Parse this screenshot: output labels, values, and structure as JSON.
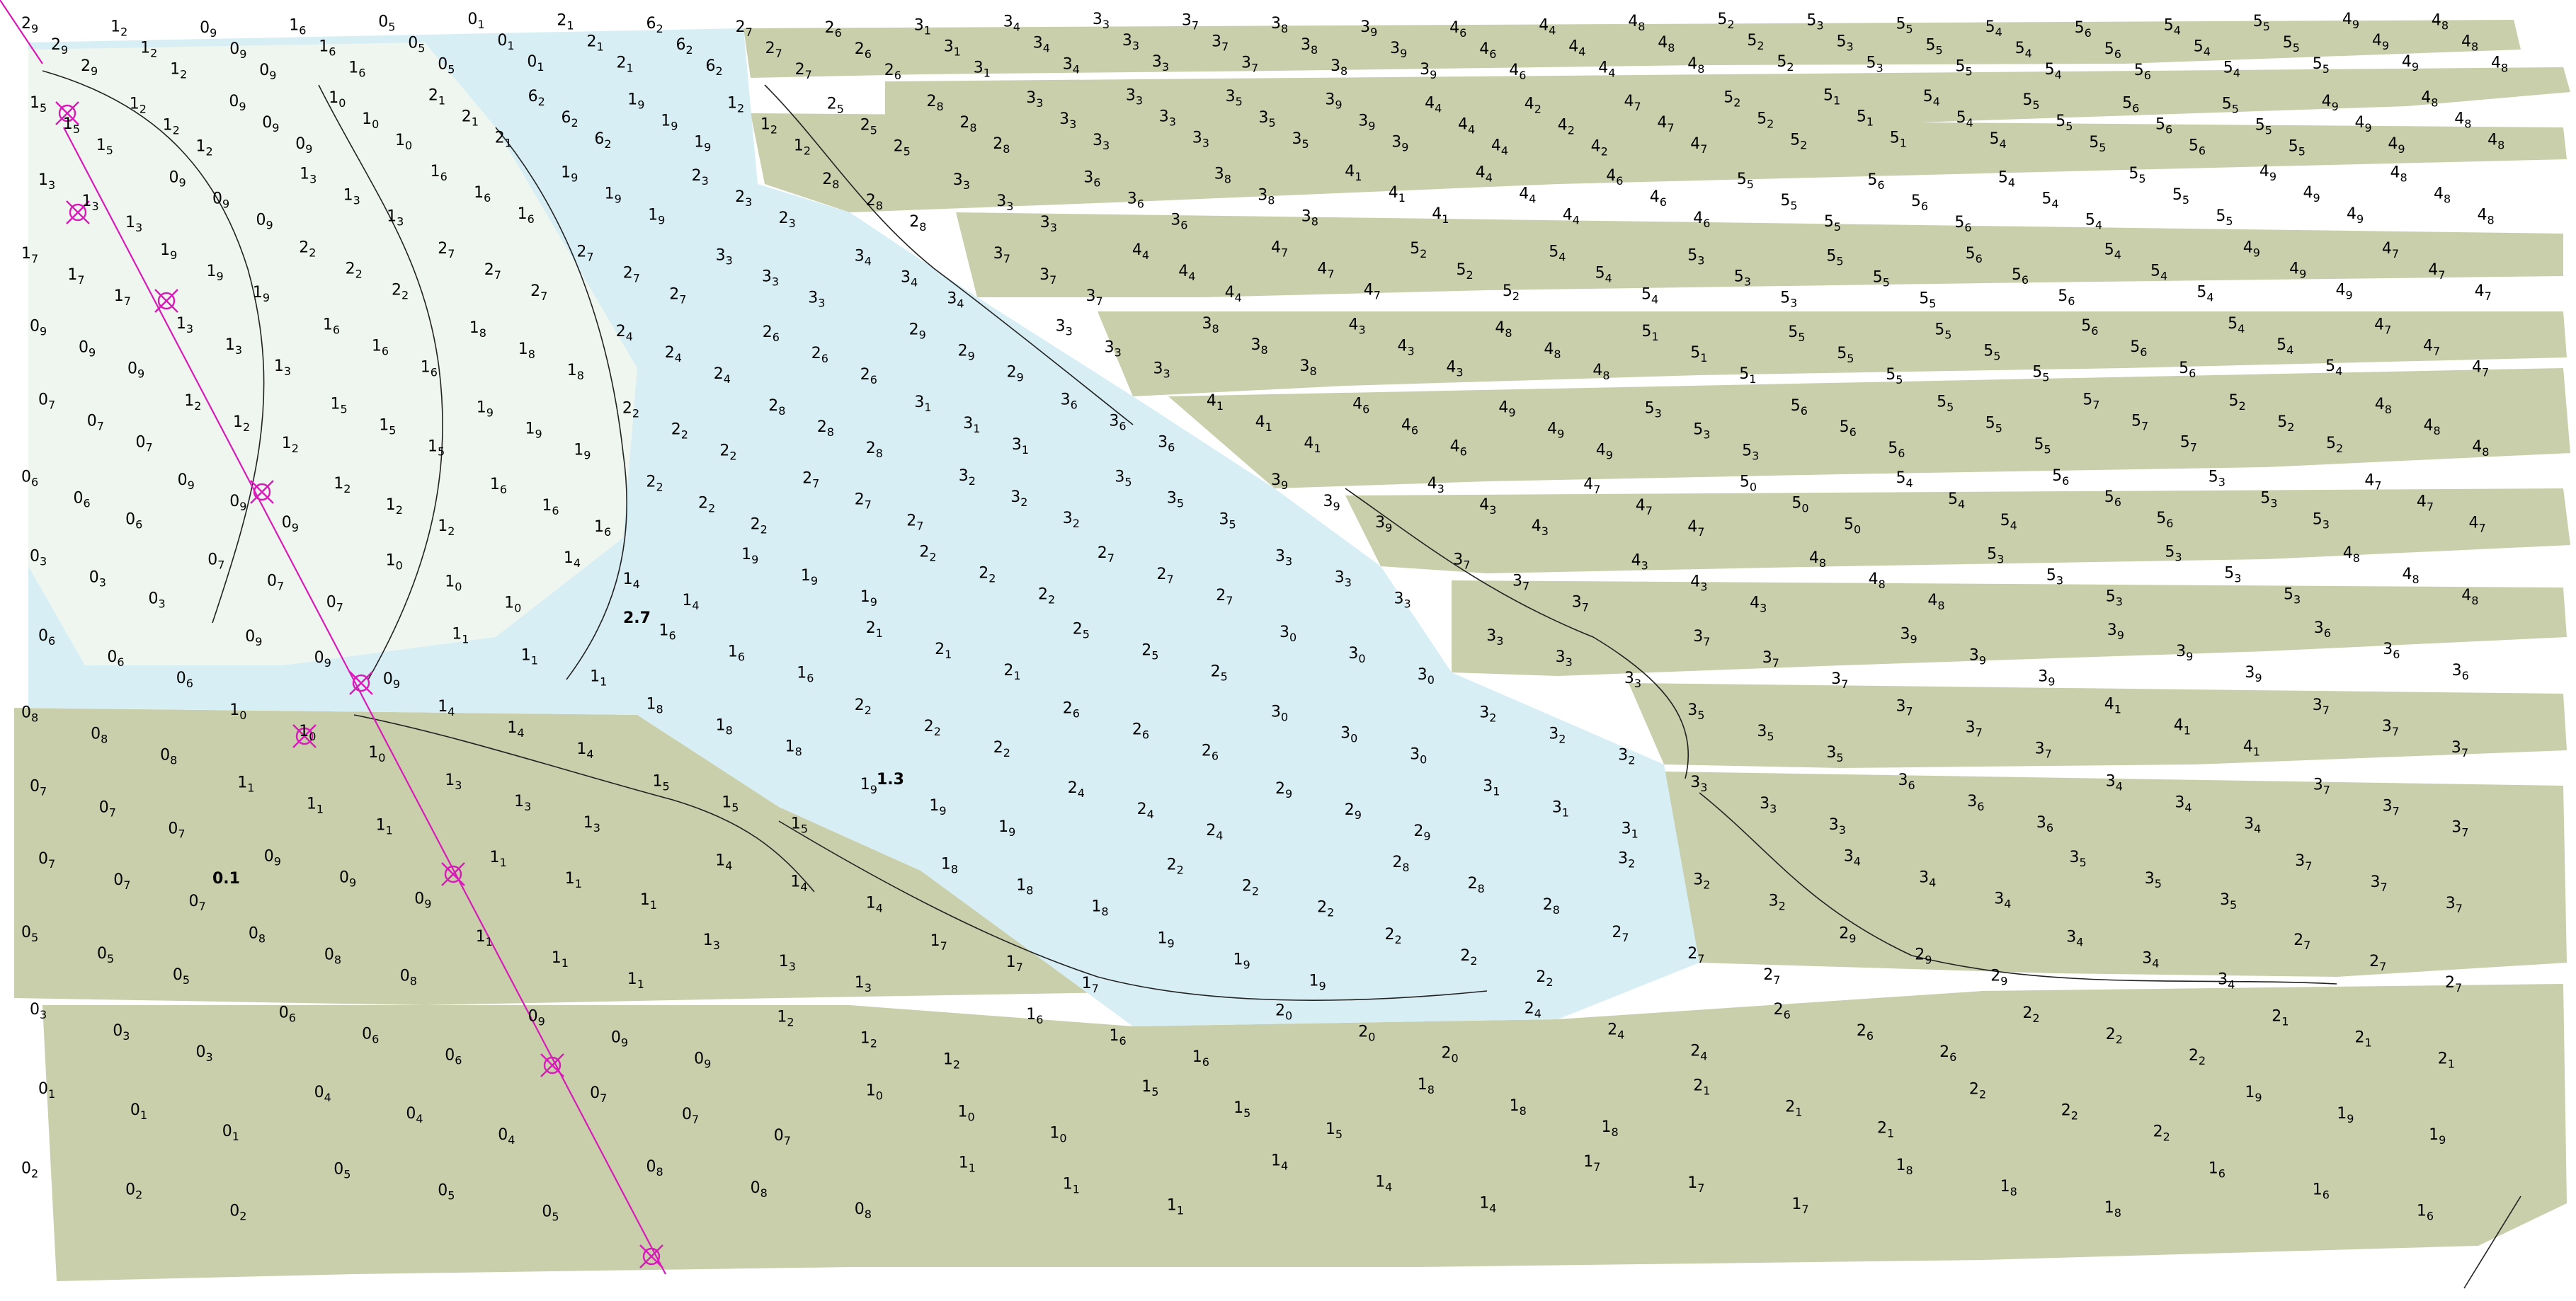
{
  "colors": {
    "background": "#ffffff",
    "shallow_water": "#d8eef5",
    "very_shallow": "#eef6ef",
    "drying_area": "#c8cfaa",
    "contour": "#222222",
    "magenta_feature": "#d81bb8",
    "text": "#000000"
  },
  "map": {
    "type": "bathymetric soundings survey",
    "sounding_units": "metres",
    "sounding_rows": [
      {
        "row": 1,
        "zone": "drying",
        "samples": [
          "2",
          "9",
          "1",
          "2",
          "0",
          "9",
          "1",
          "6",
          "0",
          "5",
          "0",
          "1",
          "2",
          "1",
          "6",
          "2",
          "2",
          "7",
          "2",
          "6",
          "3",
          "1",
          "3",
          "4",
          "3",
          "3",
          "3",
          "7",
          "3",
          "8",
          "3",
          "9",
          "4",
          "6",
          "4",
          "4",
          "4",
          "8",
          "5",
          "2",
          "5",
          "3",
          "5",
          "5",
          "5",
          "4",
          "5",
          "6",
          "5",
          "4",
          "5",
          "5",
          "4",
          "9",
          "4",
          "8"
        ]
      },
      {
        "row": 2,
        "zone": "drying",
        "samples": [
          "1",
          "5",
          "1",
          "2",
          "0",
          "9",
          "1",
          "0",
          "2",
          "1",
          "6",
          "2",
          "1",
          "9",
          "1",
          "2",
          "2",
          "5",
          "2",
          "8",
          "3",
          "3",
          "3",
          "3",
          "3",
          "5",
          "3",
          "9",
          "4",
          "4",
          "4",
          "2",
          "4",
          "7",
          "5",
          "2",
          "5",
          "1",
          "5",
          "4",
          "5",
          "5",
          "5",
          "6",
          "5",
          "5",
          "4",
          "9",
          "4",
          "8"
        ]
      },
      {
        "row": 3,
        "zone": "drying",
        "samples": [
          "1",
          "3",
          "0",
          "9",
          "1",
          "3",
          "1",
          "6",
          "1",
          "9",
          "2",
          "3",
          "2",
          "8",
          "3",
          "3",
          "3",
          "6",
          "3",
          "8",
          "4",
          "1",
          "4",
          "4",
          "4",
          "6",
          "5",
          "5",
          "5",
          "6",
          "5",
          "4",
          "5",
          "5",
          "4",
          "9",
          "4",
          "8"
        ]
      },
      {
        "row": 4,
        "zone": "drying",
        "samples": [
          "1",
          "7",
          "1",
          "9",
          "2",
          "2",
          "2",
          "7",
          "2",
          "7",
          "3",
          "3",
          "3",
          "4",
          "3",
          "7",
          "4",
          "4",
          "4",
          "7",
          "5",
          "2",
          "5",
          "4",
          "5",
          "3",
          "5",
          "5",
          "5",
          "6",
          "5",
          "4",
          "4",
          "9",
          "4",
          "7"
        ]
      },
      {
        "row": 5,
        "zone": "drying",
        "samples": [
          "0",
          "9",
          "1",
          "3",
          "1",
          "6",
          "1",
          "8",
          "2",
          "4",
          "2",
          "6",
          "2",
          "9",
          "3",
          "3",
          "3",
          "8",
          "4",
          "3",
          "4",
          "8",
          "5",
          "1",
          "5",
          "5",
          "5",
          "5",
          "5",
          "6",
          "5",
          "4",
          "4",
          "7"
        ]
      },
      {
        "row": 6,
        "zone": "drying",
        "samples": [
          "0",
          "7",
          "1",
          "2",
          "1",
          "5",
          "1",
          "9",
          "2",
          "2",
          "2",
          "8",
          "3",
          "1",
          "3",
          "6",
          "4",
          "1",
          "4",
          "6",
          "4",
          "9",
          "5",
          "3",
          "5",
          "6",
          "5",
          "5",
          "5",
          "7",
          "5",
          "2",
          "4",
          "8"
        ]
      },
      {
        "row": 7,
        "zone": "drying",
        "samples": [
          "0",
          "6",
          "0",
          "9",
          "1",
          "2",
          "1",
          "6",
          "2",
          "2",
          "2",
          "7",
          "3",
          "2",
          "3",
          "5",
          "3",
          "9",
          "4",
          "3",
          "4",
          "7",
          "5",
          "0",
          "5",
          "4",
          "5",
          "6",
          "5",
          "3",
          "4",
          "7"
        ]
      },
      {
        "row": 8,
        "zone": "drying",
        "samples": [
          "0",
          "3",
          "0",
          "7",
          "1",
          "0",
          "1",
          "4",
          "1",
          "9",
          "2",
          "2",
          "2",
          "7",
          "3",
          "3",
          "3",
          "7",
          "4",
          "3",
          "4",
          "8",
          "5",
          "3",
          "5",
          "3",
          "4",
          "8"
        ]
      },
      {
        "row": 9,
        "zone": "drying",
        "samples": [
          "0",
          "6",
          "0",
          "9",
          "1",
          "1",
          "1",
          "6",
          "2",
          "1",
          "2",
          "5",
          "3",
          "0",
          "3",
          "3",
          "3",
          "7",
          "3",
          "9",
          "3",
          "9",
          "3",
          "6"
        ]
      },
      {
        "row": 10,
        "zone": "drying",
        "samples": [
          "0",
          "8",
          "1",
          "0",
          "1",
          "4",
          "1",
          "8",
          "2",
          "2",
          "2",
          "6",
          "3",
          "0",
          "3",
          "2",
          "3",
          "5",
          "3",
          "7",
          "4",
          "1",
          "3",
          "7"
        ]
      },
      {
        "row": 11,
        "zone": "drying",
        "samples": [
          "0",
          "7",
          "1",
          "1",
          "1",
          "3",
          "1",
          "5",
          "1",
          "9",
          "2",
          "4",
          "2",
          "9",
          "3",
          "1",
          "3",
          "3",
          "3",
          "6",
          "3",
          "4",
          "3",
          "7"
        ]
      },
      {
        "row": 12,
        "zone": "drying",
        "samples": [
          "0",
          "7",
          "0",
          "9",
          "1",
          "1",
          "1",
          "4",
          "1",
          "8",
          "2",
          "2",
          "2",
          "8",
          "3",
          "2",
          "3",
          "4",
          "3",
          "5",
          "3",
          "7"
        ]
      },
      {
        "row": 13,
        "zone": "water",
        "samples": [
          "0",
          "5",
          "0",
          "8",
          "1",
          "1",
          "1",
          "3",
          "1",
          "7",
          "1",
          "9",
          "2",
          "2",
          "2",
          "7",
          "2",
          "9",
          "3",
          "4",
          "2",
          "7"
        ]
      },
      {
        "row": 14,
        "zone": "water",
        "samples": [
          "0",
          "3",
          "0",
          "6",
          "0",
          "9",
          "1",
          "2",
          "1",
          "6",
          "2",
          "0",
          "2",
          "4",
          "2",
          "6",
          "2",
          "2",
          "2",
          "1"
        ]
      },
      {
        "row": 15,
        "zone": "water",
        "samples": [
          "0",
          "1",
          "0",
          "4",
          "0",
          "7",
          "1",
          "0",
          "1",
          "5",
          "1",
          "8",
          "2",
          "1",
          "2",
          "2",
          "1",
          "9"
        ]
      },
      {
        "row": 16,
        "zone": "water",
        "samples": [
          "0",
          "2",
          "0",
          "5",
          "0",
          "8",
          "1",
          "1",
          "1",
          "4",
          "1",
          "7",
          "1",
          "8",
          "1",
          "6"
        ]
      }
    ],
    "annotations": [
      "0.1",
      "1.3",
      "2.7"
    ],
    "landmark_symbols": 9
  }
}
